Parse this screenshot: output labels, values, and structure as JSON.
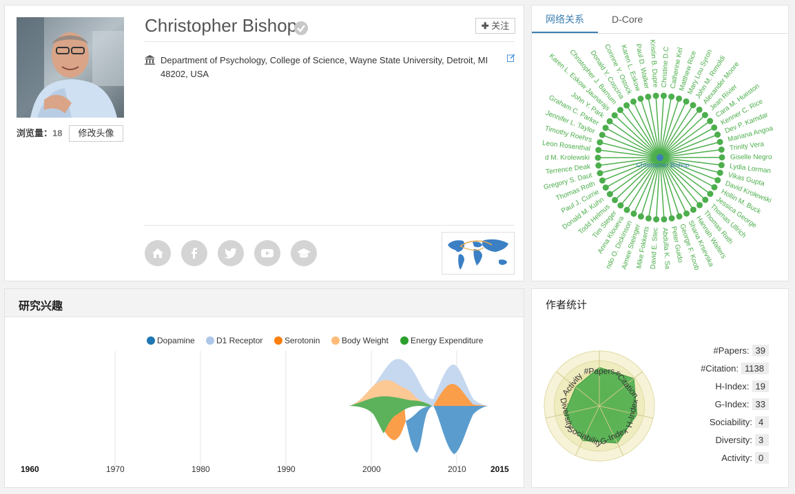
{
  "profile": {
    "name": "Christopher Bishop",
    "views_label": "浏览量：",
    "views_count": "18",
    "edit_avatar_label": "修改头像",
    "follow_label": "关注",
    "follow_icon": "plus-icon",
    "affiliation": "Department of Psychology, College of Science, Wayne State University, Detroit, MI 48202, USA",
    "social_icons": [
      "home-icon",
      "facebook-icon",
      "twitter-icon",
      "youtube-icon",
      "graduation-cap-icon"
    ]
  },
  "network": {
    "tabs": [
      "网络关系",
      "D-Core"
    ],
    "active_tab": 0,
    "center_label": "Christopher Bishop",
    "node_color": "#4cae4c",
    "center_color": "#3d7fb2",
    "nodes": [
      "Christine D.C",
      "Catherine Kel",
      "Matthew Rice",
      "Mary Lou Syron",
      "John M. Rimoldi",
      "Alexander Moore",
      "Jean Rivier",
      "Cara M. Hueston",
      "Kenner C. Rice",
      "Dev P. Kamdar",
      "Mariana Angoa",
      "Trinity Vera",
      "Giselle Negro",
      "Lydia Lorman",
      "Vikas Gupta",
      "David Krolewski",
      "Hollin M. Buck",
      "Jessica George",
      "Thomas Ullrich",
      "Thomas Roth",
      "Hannah Walters",
      "Shana Krsevska",
      "George F. Koob",
      "Peter Guido",
      "Abdulla K. Sa",
      "David E. Stec",
      "Mike Fokkerts",
      "Aimee Steinger",
      "ndo O. Dickinson",
      "Anna Kloueva",
      "Tim Steger",
      "Todd Helmus",
      "Donald M. Kuhn",
      "Paul J. Currie",
      "Thomas Roth",
      "Gregory S. Daut",
      "Terrence Deak",
      "d M. Krolewski",
      "Leon Rosenthal",
      "Timothy Roehrs",
      "Jennifer L. Taylor",
      "Graham C. Parker",
      "John Y. Park",
      "Karen L. Eskow Jaunarajs",
      "Christopher J. Barnum",
      "Donald Y. Coscina",
      "Corinne Y. Ostock",
      "Karen L. Eskow",
      "Paul D. Walker",
      "Kristin B. Dupre"
    ]
  },
  "interests": {
    "title": "研究兴趣",
    "legend": [
      {
        "name": "Dopamine",
        "color": "#1f77b4"
      },
      {
        "name": "D1 Receptor",
        "color": "#aec7e8"
      },
      {
        "name": "Serotonin",
        "color": "#ff7f0e"
      },
      {
        "name": "Body Weight",
        "color": "#ffbb78"
      },
      {
        "name": "Energy Expenditure",
        "color": "#2ca02c"
      }
    ],
    "axis_ticks": [
      "1960",
      "1970",
      "1980",
      "1990",
      "2000",
      "2010",
      "2015"
    ]
  },
  "stats": {
    "title": "作者统计",
    "items": [
      {
        "label": "#Papers:",
        "value": "39"
      },
      {
        "label": "#Citation:",
        "value": "1138"
      },
      {
        "label": "H-Index:",
        "value": "19"
      },
      {
        "label": "G-Index:",
        "value": "33"
      },
      {
        "label": "Sociability:",
        "value": "4"
      },
      {
        "label": "Diversity:",
        "value": "3"
      },
      {
        "label": "Activity:",
        "value": "0"
      }
    ],
    "radar_axes": [
      "#Papers",
      "#Citation",
      "H-Index",
      "G-Index",
      "Sociability",
      "Diversity",
      "Activity"
    ],
    "radar_levels": [
      0.7,
      0.8,
      0.7,
      0.75,
      0.7,
      0.65,
      0.55
    ],
    "radar_fill": "#4cae4c"
  }
}
